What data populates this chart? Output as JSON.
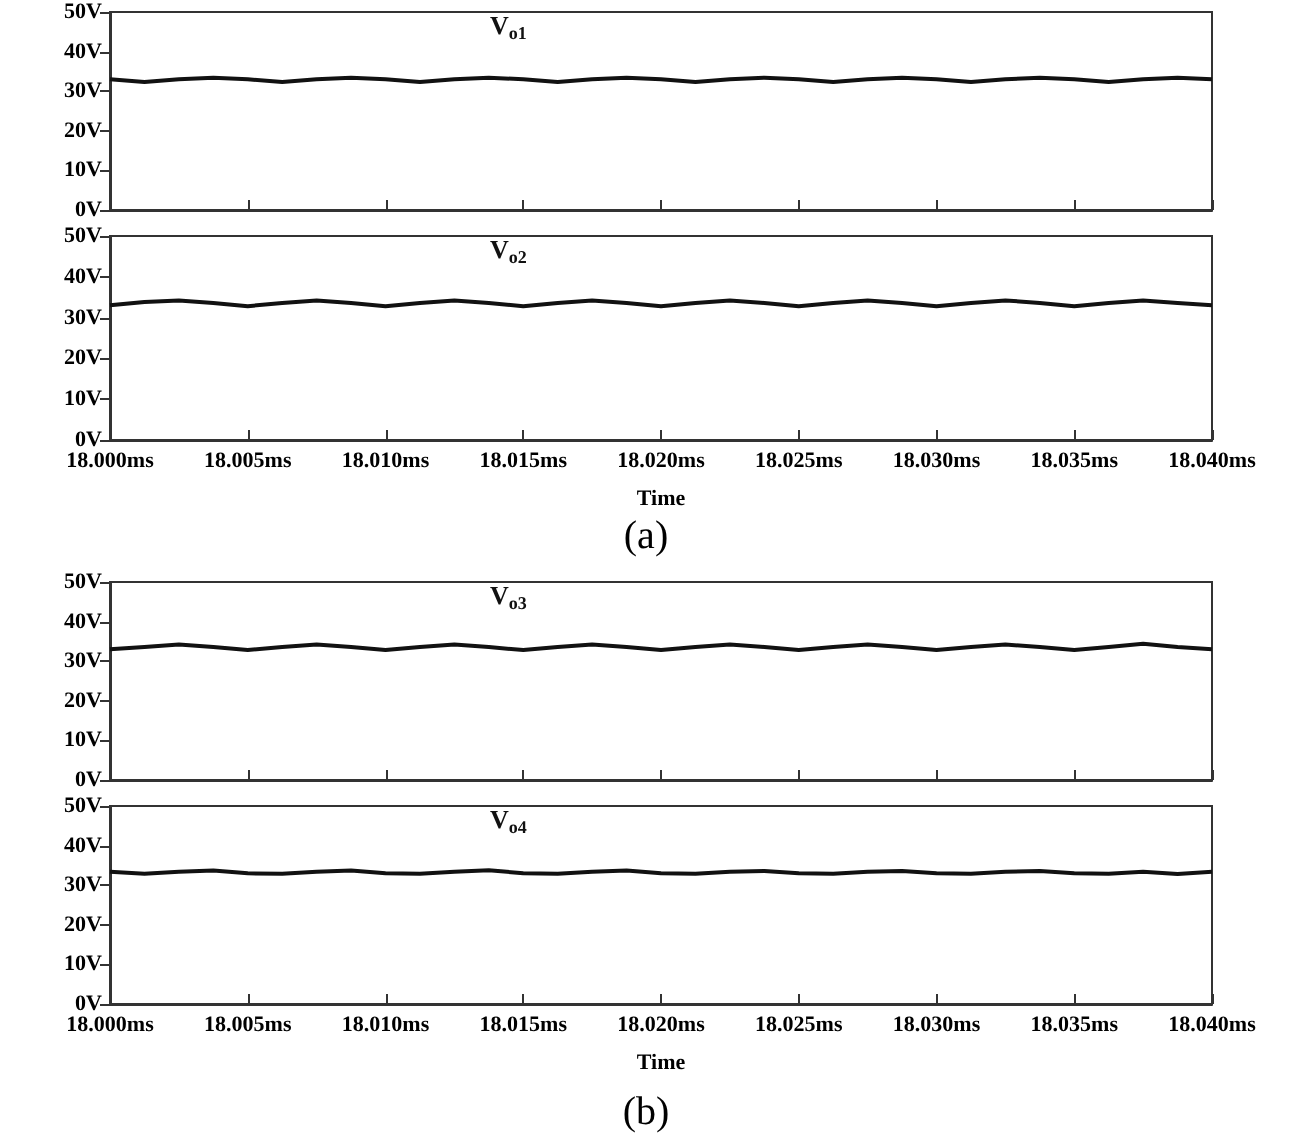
{
  "chart_data": [
    {
      "type": "line",
      "categories": [
        null,
        null,
        null,
        null,
        null,
        null,
        null,
        null,
        null,
        null,
        null,
        null,
        null,
        null,
        null,
        null,
        null,
        null,
        null,
        null,
        null,
        null,
        null,
        null,
        null,
        null,
        null,
        null,
        null,
        null,
        null,
        null,
        null
      ],
      "series": [
        {
          "name": "V$_{o1}$",
          "color": "#111111",
          "values": [
            33,
            32.3,
            33,
            33.4,
            33,
            32.3,
            33,
            33.4,
            33,
            32.3,
            33,
            33.4,
            33,
            32.3,
            33,
            33.4,
            33,
            32.3,
            33,
            33.4,
            33,
            32.3,
            33,
            33.4,
            33,
            32.3,
            33,
            33.4,
            33,
            32.3,
            33,
            33.4,
            33
          ]
        }
      ],
      "ylim": [
        0,
        50
      ],
      "yticks": [
        {
          "value": 0,
          "label": "0V"
        },
        {
          "value": 10,
          "label": "10V"
        },
        {
          "value": 20,
          "label": "20V"
        },
        {
          "value": 30,
          "label": "30V"
        },
        {
          "value": 40,
          "label": "40V"
        },
        {
          "value": 50,
          "label": "50V"
        }
      ],
      "tick_labels": "y",
      "grid": false,
      "legend": false,
      "marker": "none"
    },
    {
      "type": "line",
      "categories": [
        "18.000ms",
        null,
        null,
        null,
        "18.005ms",
        null,
        null,
        null,
        "18.010ms",
        null,
        null,
        null,
        "18.015ms",
        null,
        null,
        null,
        "18.020ms",
        null,
        null,
        null,
        "18.025ms",
        null,
        null,
        null,
        "18.030ms",
        null,
        null,
        null,
        "18.035ms",
        null,
        null,
        null,
        "18.040ms"
      ],
      "series": [
        {
          "name": "V$_{o2}$",
          "color": "#111111",
          "values": [
            33,
            33.8,
            34.2,
            33.6,
            32.8,
            33.6,
            34.2,
            33.6,
            32.8,
            33.6,
            34.2,
            33.6,
            32.8,
            33.6,
            34.2,
            33.6,
            32.8,
            33.6,
            34.2,
            33.6,
            32.8,
            33.6,
            34.2,
            33.6,
            32.8,
            33.6,
            34.2,
            33.6,
            32.8,
            33.6,
            34.2,
            33.6,
            33
          ]
        }
      ],
      "ylim": [
        0,
        50
      ],
      "yticks": [
        {
          "value": 0,
          "label": "0V"
        },
        {
          "value": 10,
          "label": "10V"
        },
        {
          "value": 20,
          "label": "20V"
        },
        {
          "value": 30,
          "label": "30V"
        },
        {
          "value": 40,
          "label": "40V"
        },
        {
          "value": 50,
          "label": "50V"
        }
      ],
      "xlabel": "Time",
      "annotations": [
        "(a)"
      ],
      "grid": false,
      "legend": false,
      "marker": "none"
    },
    {
      "type": "line",
      "categories": [
        null,
        null,
        null,
        null,
        null,
        null,
        null,
        null,
        null,
        null,
        null,
        null,
        null,
        null,
        null,
        null,
        null,
        null,
        null,
        null,
        null,
        null,
        null,
        null,
        null,
        null,
        null,
        null,
        null,
        null,
        null,
        null,
        null
      ],
      "series": [
        {
          "name": "V$_{o3}$",
          "color": "#111111",
          "values": [
            33,
            33.6,
            34.2,
            33.6,
            32.8,
            33.6,
            34.2,
            33.6,
            32.8,
            33.6,
            34.2,
            33.6,
            32.8,
            33.6,
            34.2,
            33.6,
            32.8,
            33.6,
            34.2,
            33.6,
            32.8,
            33.6,
            34.2,
            33.6,
            32.8,
            33.6,
            34.2,
            33.6,
            32.8,
            33.6,
            34.4,
            33.6,
            33
          ]
        }
      ],
      "ylim": [
        0,
        50
      ],
      "yticks": [
        {
          "value": 0,
          "label": "0V"
        },
        {
          "value": 10,
          "label": "10V"
        },
        {
          "value": 20,
          "label": "20V"
        },
        {
          "value": 30,
          "label": "30V"
        },
        {
          "value": 40,
          "label": "40V"
        },
        {
          "value": 50,
          "label": "50V"
        }
      ],
      "tick_labels": "y",
      "grid": false,
      "legend": false,
      "marker": "none"
    },
    {
      "type": "line",
      "categories": [
        "18.000ms",
        null,
        null,
        null,
        "18.005ms",
        null,
        null,
        null,
        "18.010ms",
        null,
        null,
        null,
        "18.015ms",
        null,
        null,
        null,
        "18.020ms",
        null,
        null,
        null,
        "18.025ms",
        null,
        null,
        null,
        "18.030ms",
        null,
        null,
        null,
        "18.035ms",
        null,
        null,
        null,
        "18.040ms"
      ],
      "series": [
        {
          "name": "V$_{o4}$",
          "color": "#111111",
          "values": [
            33.4,
            32.9,
            33.4,
            33.7,
            33,
            32.9,
            33.4,
            33.7,
            33,
            32.9,
            33.4,
            33.8,
            33,
            32.9,
            33.4,
            33.7,
            33,
            32.9,
            33.4,
            33.6,
            33,
            32.9,
            33.4,
            33.6,
            33,
            32.9,
            33.4,
            33.6,
            33,
            32.9,
            33.4,
            32.8,
            33.4
          ]
        }
      ],
      "ylim": [
        0,
        50
      ],
      "yticks": [
        {
          "value": 0,
          "label": "0V"
        },
        {
          "value": 10,
          "label": "10V"
        },
        {
          "value": 20,
          "label": "20V"
        },
        {
          "value": 30,
          "label": "30V"
        },
        {
          "value": 40,
          "label": "40V"
        },
        {
          "value": 50,
          "label": "50V"
        }
      ],
      "xlabel": "Time",
      "annotations": [
        "(b)"
      ],
      "grid": false,
      "legend": false,
      "marker": "none"
    }
  ]
}
